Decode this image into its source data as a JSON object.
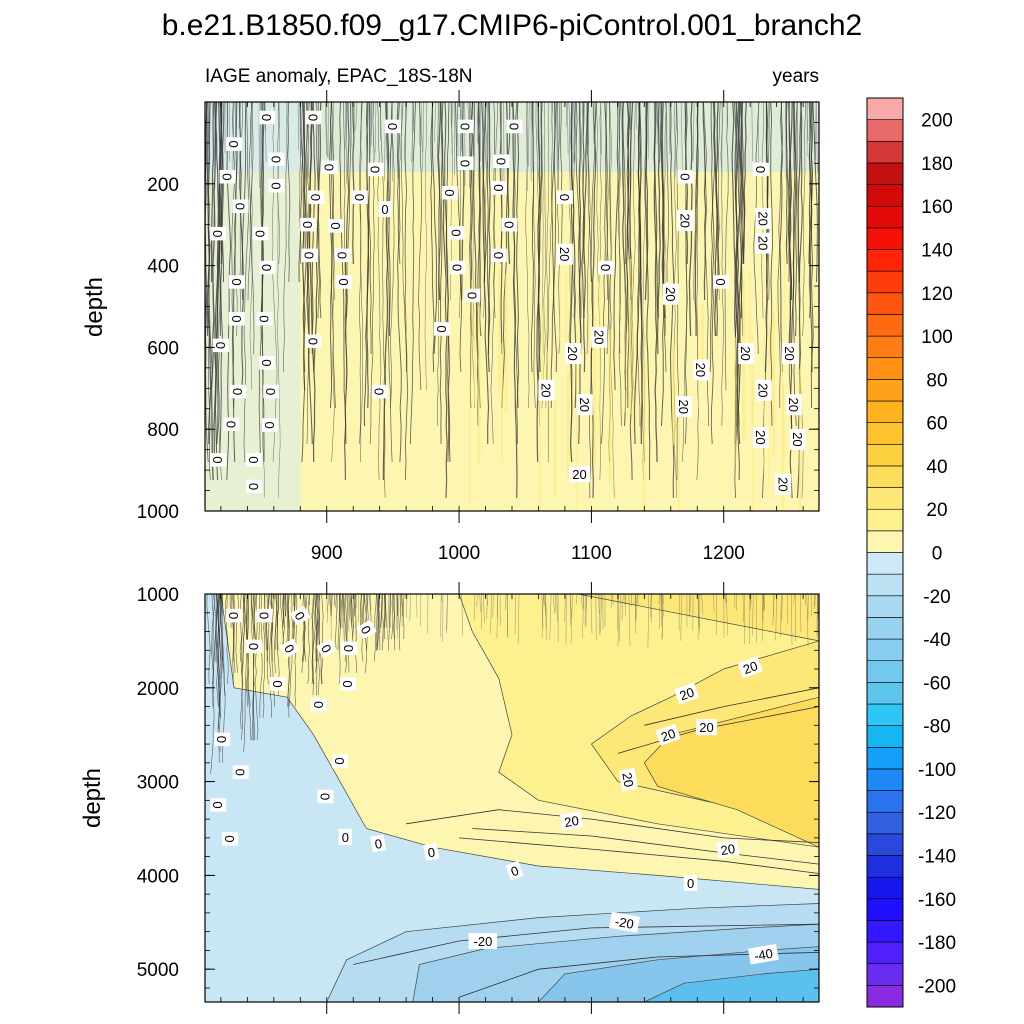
{
  "title": "b.e21.B1850.f09_g17.CMIP6-piControl.001_branch2",
  "chart_data": {
    "type": "heatmap",
    "title": "b.e21.B1850.f09_g17.CMIP6-piControl.001_branch2",
    "subtitle_left": "IAGE anomaly, EPAC_18S-18N",
    "subtitle_right": "years",
    "xlabel": "",
    "ylabel": "depth",
    "xlim": [
      808,
      1272
    ],
    "x_ticks": [
      900,
      1000,
      1100,
      1200
    ],
    "x_tick_labels": [
      "900",
      "1000",
      "1100",
      "1200"
    ],
    "colorbar": {
      "levels": [
        -210,
        -200,
        -190,
        -180,
        -170,
        -160,
        -150,
        -140,
        -130,
        -120,
        -110,
        -100,
        -90,
        -80,
        -70,
        -60,
        -50,
        -40,
        -30,
        -20,
        -10,
        0,
        10,
        20,
        30,
        40,
        50,
        60,
        70,
        80,
        90,
        100,
        110,
        120,
        130,
        140,
        150,
        160,
        170,
        180,
        190,
        200,
        210
      ],
      "tick_labels": [
        "-200",
        "-180",
        "-160",
        "-140",
        "-120",
        "-100",
        "-80",
        "-60",
        "-40",
        "-20",
        "0",
        "20",
        "40",
        "60",
        "80",
        "100",
        "120",
        "140",
        "160",
        "180",
        "200"
      ],
      "colors": [
        "#8a2be2",
        "#6a2df0",
        "#5020ff",
        "#3418ff",
        "#2010ff",
        "#1818ee",
        "#2030e0",
        "#2a48dc",
        "#3060e0",
        "#2a72ee",
        "#1e88f4",
        "#14a0f8",
        "#16b6f2",
        "#2ec6f4",
        "#5cc6ee",
        "#72c8ee",
        "#86cdef",
        "#98d2ef",
        "#a8d9f0",
        "#bbe1f3",
        "#cde8f6",
        "#fdf6b0",
        "#fdf08f",
        "#fde877",
        "#fddc5c",
        "#fdd040",
        "#fec22e",
        "#feb21f",
        "#fea319",
        "#fe9016",
        "#fe7c14",
        "#fe6a12",
        "#fe5510",
        "#fe3c0c",
        "#fe2408",
        "#f51008",
        "#e50a0a",
        "#d40a0a",
        "#c41010",
        "#d63838",
        "#e86a6a",
        "#f7a8a8"
      ]
    },
    "panels": [
      {
        "name": "upper",
        "ylim": [
          1000,
          0
        ],
        "y_ticks": [
          200,
          400,
          600,
          800,
          1000
        ],
        "y_tick_labels": [
          "200",
          "400",
          "600",
          "800",
          "1000"
        ],
        "contour_labels": [
          {
            "text": "0",
            "x": 855,
            "y": 38,
            "rot": 90
          },
          {
            "text": "0",
            "x": 890,
            "y": 38,
            "rot": 90
          },
          {
            "text": "0",
            "x": 950,
            "y": 60,
            "rot": 90
          },
          {
            "text": "0",
            "x": 1005,
            "y": 60,
            "rot": 90
          },
          {
            "text": "0",
            "x": 1042,
            "y": 60,
            "rot": 90
          },
          {
            "text": "0",
            "x": 830,
            "y": 103,
            "rot": 90
          },
          {
            "text": "0",
            "x": 862,
            "y": 140,
            "rot": 90
          },
          {
            "text": "0",
            "x": 902,
            "y": 160,
            "rot": 90
          },
          {
            "text": "0",
            "x": 1005,
            "y": 150,
            "rot": 90
          },
          {
            "text": "0",
            "x": 1032,
            "y": 145,
            "rot": 90
          },
          {
            "text": "0",
            "x": 937,
            "y": 165,
            "rot": 90
          },
          {
            "text": "0",
            "x": 1228,
            "y": 165,
            "rot": 90
          },
          {
            "text": "0",
            "x": 825,
            "y": 183,
            "rot": 90
          },
          {
            "text": "0",
            "x": 862,
            "y": 205,
            "rot": 90
          },
          {
            "text": "0",
            "x": 1171,
            "y": 183,
            "rot": 90
          },
          {
            "text": "0",
            "x": 1030,
            "y": 210,
            "rot": 90
          },
          {
            "text": "0",
            "x": 993,
            "y": 222,
            "rot": 90
          },
          {
            "text": "0",
            "x": 892,
            "y": 233,
            "rot": 90
          },
          {
            "text": "0",
            "x": 925,
            "y": 233,
            "rot": 90
          },
          {
            "text": "0",
            "x": 1080,
            "y": 233,
            "rot": 90
          },
          {
            "text": "0",
            "x": 835,
            "y": 255,
            "rot": 90
          },
          {
            "text": "0",
            "x": 944,
            "y": 262,
            "rot": 0
          },
          {
            "text": "0",
            "x": 1038,
            "y": 300,
            "rot": 90
          },
          {
            "text": "0",
            "x": 886,
            "y": 300,
            "rot": 90
          },
          {
            "text": "0",
            "x": 907,
            "y": 303,
            "rot": 90
          },
          {
            "text": "0",
            "x": 818,
            "y": 322,
            "rot": 90
          },
          {
            "text": "0",
            "x": 850,
            "y": 322,
            "rot": 90
          },
          {
            "text": "0",
            "x": 998,
            "y": 320,
            "rot": 90
          },
          {
            "text": "20",
            "x": 1171,
            "y": 290,
            "rot": 90
          },
          {
            "text": "20",
            "x": 1230,
            "y": 285,
            "rot": 90
          },
          {
            "text": "20",
            "x": 1230,
            "y": 345,
            "rot": 90
          },
          {
            "text": "0",
            "x": 887,
            "y": 375,
            "rot": 90
          },
          {
            "text": "0",
            "x": 912,
            "y": 375,
            "rot": 90
          },
          {
            "text": "0",
            "x": 1030,
            "y": 375,
            "rot": 90
          },
          {
            "text": "20",
            "x": 1080,
            "y": 372,
            "rot": 90
          },
          {
            "text": "0",
            "x": 855,
            "y": 405,
            "rot": 90
          },
          {
            "text": "0",
            "x": 999,
            "y": 405,
            "rot": 90
          },
          {
            "text": "0",
            "x": 1111,
            "y": 405,
            "rot": 90
          },
          {
            "text": "0",
            "x": 832,
            "y": 440,
            "rot": 90
          },
          {
            "text": "0",
            "x": 913,
            "y": 440,
            "rot": 90
          },
          {
            "text": "0",
            "x": 1198,
            "y": 440,
            "rot": 90
          },
          {
            "text": "0",
            "x": 1010,
            "y": 473,
            "rot": 90
          },
          {
            "text": "20",
            "x": 1160,
            "y": 470,
            "rot": 90
          },
          {
            "text": "0",
            "x": 832,
            "y": 530,
            "rot": 90
          },
          {
            "text": "0",
            "x": 853,
            "y": 530,
            "rot": 90
          },
          {
            "text": "0",
            "x": 987,
            "y": 555,
            "rot": 90
          },
          {
            "text": "20",
            "x": 1106,
            "y": 575,
            "rot": 90
          },
          {
            "text": "0",
            "x": 820,
            "y": 595,
            "rot": 90
          },
          {
            "text": "0",
            "x": 890,
            "y": 585,
            "rot": 90
          },
          {
            "text": "20",
            "x": 1086,
            "y": 615,
            "rot": 90
          },
          {
            "text": "20",
            "x": 1217,
            "y": 615,
            "rot": 90
          },
          {
            "text": "20",
            "x": 1250,
            "y": 615,
            "rot": 90
          },
          {
            "text": "0",
            "x": 855,
            "y": 638,
            "rot": 90
          },
          {
            "text": "20",
            "x": 1183,
            "y": 655,
            "rot": 90
          },
          {
            "text": "0",
            "x": 833,
            "y": 708,
            "rot": 90
          },
          {
            "text": "0",
            "x": 858,
            "y": 708,
            "rot": 90
          },
          {
            "text": "0",
            "x": 940,
            "y": 708,
            "rot": 90
          },
          {
            "text": "20",
            "x": 1066,
            "y": 705,
            "rot": 90
          },
          {
            "text": "20",
            "x": 1230,
            "y": 705,
            "rot": 90
          },
          {
            "text": "20",
            "x": 1095,
            "y": 740,
            "rot": 90
          },
          {
            "text": "20",
            "x": 1170,
            "y": 745,
            "rot": 90
          },
          {
            "text": "20",
            "x": 1253,
            "y": 740,
            "rot": 90
          },
          {
            "text": "0",
            "x": 828,
            "y": 788,
            "rot": 90
          },
          {
            "text": "0",
            "x": 857,
            "y": 790,
            "rot": 90
          },
          {
            "text": "20",
            "x": 1228,
            "y": 820,
            "rot": 90
          },
          {
            "text": "20",
            "x": 1256,
            "y": 825,
            "rot": 90
          },
          {
            "text": "0",
            "x": 818,
            "y": 875,
            "rot": 90
          },
          {
            "text": "0",
            "x": 845,
            "y": 875,
            "rot": 90
          },
          {
            "text": "20",
            "x": 1091,
            "y": 910,
            "rot": 0
          },
          {
            "text": "0",
            "x": 845,
            "y": 940,
            "rot": 90
          },
          {
            "text": "20",
            "x": 1245,
            "y": 935,
            "rot": 90
          }
        ]
      },
      {
        "name": "lower",
        "ylim": [
          5350,
          1000
        ],
        "y_ticks": [
          1000,
          2000,
          3000,
          4000,
          5000
        ],
        "y_tick_labels": [
          "1000",
          "2000",
          "3000",
          "4000",
          "5000"
        ],
        "contour_labels": [
          {
            "text": "0",
            "x": 830,
            "y": 1230,
            "rot": 90
          },
          {
            "text": "0",
            "x": 853,
            "y": 1230,
            "rot": 90
          },
          {
            "text": "0",
            "x": 880,
            "y": 1230,
            "rot": 60
          },
          {
            "text": "0",
            "x": 930,
            "y": 1380,
            "rot": 60
          },
          {
            "text": "0",
            "x": 845,
            "y": 1560,
            "rot": 90
          },
          {
            "text": "0",
            "x": 872,
            "y": 1580,
            "rot": 60
          },
          {
            "text": "0",
            "x": 900,
            "y": 1580,
            "rot": 60
          },
          {
            "text": "0",
            "x": 917,
            "y": 1580,
            "rot": 90
          },
          {
            "text": "0",
            "x": 863,
            "y": 1960,
            "rot": 90
          },
          {
            "text": "0",
            "x": 916,
            "y": 1960,
            "rot": 90
          },
          {
            "text": "0",
            "x": 894,
            "y": 2180,
            "rot": 90
          },
          {
            "text": "0",
            "x": 821,
            "y": 2550,
            "rot": 90
          },
          {
            "text": "0",
            "x": 835,
            "y": 2900,
            "rot": 90
          },
          {
            "text": "0",
            "x": 910,
            "y": 2780,
            "rot": 90
          },
          {
            "text": "0",
            "x": 899,
            "y": 3160,
            "rot": 90
          },
          {
            "text": "0",
            "x": 818,
            "y": 3250,
            "rot": 90
          },
          {
            "text": "0",
            "x": 827,
            "y": 3610,
            "rot": 90
          },
          {
            "text": "0",
            "x": 914,
            "y": 3590,
            "rot": 0
          },
          {
            "text": "0",
            "x": 939,
            "y": 3660,
            "rot": -10
          },
          {
            "text": "0",
            "x": 979,
            "y": 3750,
            "rot": -10
          },
          {
            "text": "0",
            "x": 1042,
            "y": 3950,
            "rot": -20
          },
          {
            "text": "0",
            "x": 1175,
            "y": 4080,
            "rot": 0
          },
          {
            "text": "20",
            "x": 1220,
            "y": 1780,
            "rot": -20
          },
          {
            "text": "20",
            "x": 1172,
            "y": 2060,
            "rot": -20
          },
          {
            "text": "20",
            "x": 1158,
            "y": 2500,
            "rot": -20
          },
          {
            "text": "20",
            "x": 1187,
            "y": 2420,
            "rot": 0
          },
          {
            "text": "20",
            "x": 1128,
            "y": 2980,
            "rot": 80
          },
          {
            "text": "20",
            "x": 1085,
            "y": 3420,
            "rot": -10
          },
          {
            "text": "20",
            "x": 1203,
            "y": 3720,
            "rot": -10
          },
          {
            "text": "-20",
            "x": 1018,
            "y": 4700,
            "rot": 0
          },
          {
            "text": "-20",
            "x": 1125,
            "y": 4500,
            "rot": 10
          },
          {
            "text": "-40",
            "x": 1230,
            "y": 4840,
            "rot": -10
          }
        ]
      }
    ]
  }
}
